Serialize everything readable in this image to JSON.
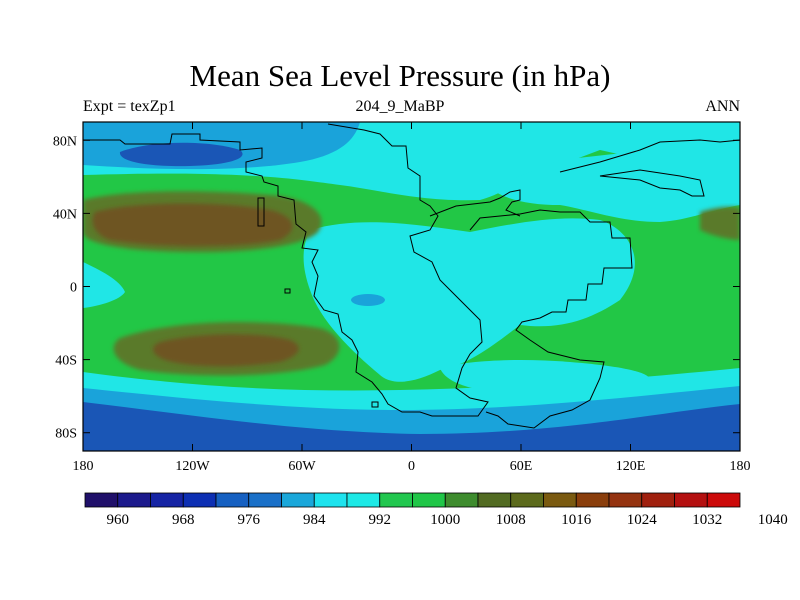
{
  "title": "Mean Sea Level Pressure (in hPa)",
  "left_string": "Expt = texZp1",
  "center_string": "204_9_MaBP",
  "right_string": "ANN",
  "x_ticks": [
    {
      "lon": -180,
      "label": "180"
    },
    {
      "lon": -120,
      "label": "120W"
    },
    {
      "lon": -60,
      "label": "60W"
    },
    {
      "lon": 0,
      "label": "0"
    },
    {
      "lon": 60,
      "label": "60E"
    },
    {
      "lon": 120,
      "label": "120E"
    },
    {
      "lon": 180,
      "label": "180"
    }
  ],
  "y_ticks": [
    {
      "lat": 80,
      "label": "80N"
    },
    {
      "lat": 40,
      "label": "40N"
    },
    {
      "lat": 0,
      "label": "0"
    },
    {
      "lat": -40,
      "label": "40S"
    },
    {
      "lat": -80,
      "label": "80S"
    }
  ],
  "colorbar": {
    "colors": [
      "#20106a",
      "#1c1a8c",
      "#1624a4",
      "#0d2fb3",
      "#1660c1",
      "#1a70c8",
      "#1aa7da",
      "#1ee3ee",
      "#1de9e6",
      "#22c74f",
      "#20c648",
      "#3e8c2e",
      "#526b22",
      "#5c6a1c",
      "#7a5a10",
      "#8a3e0c",
      "#943310",
      "#a0200e",
      "#b41010",
      "#cc0a0a"
    ],
    "labels": [
      "960",
      "968",
      "976",
      "984",
      "992",
      "1000",
      "1008",
      "1016",
      "1024",
      "1032",
      "1040"
    ],
    "label_start_boundary": 1
  },
  "field_colors": {
    "deep_low": "#1a56b6",
    "low": "#1aa3da",
    "near_mean": "#20e6e6",
    "moderate_high": "#22c746",
    "high": "#5a7a2a",
    "very_high": "#6e5520"
  }
}
